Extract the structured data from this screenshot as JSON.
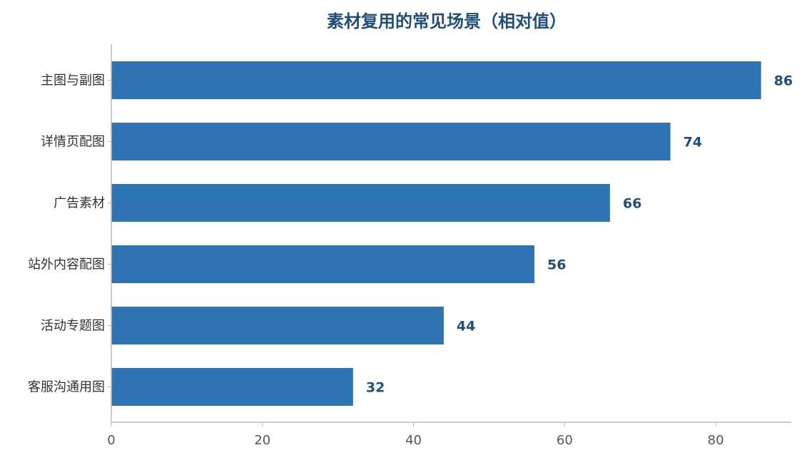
{
  "chart_data": {
    "type": "bar",
    "orientation": "horizontal",
    "title": "素材复用的常见场景（相对值）",
    "xlabel": "",
    "ylabel": "",
    "categories": [
      "主图与副图",
      "详情页配图",
      "广告素材",
      "站外内容配图",
      "活动专题图",
      "客服沟通用图"
    ],
    "values": [
      86,
      74,
      66,
      56,
      44,
      32
    ],
    "xlim": [
      0,
      90
    ],
    "xticks": [
      0,
      20,
      40,
      60,
      80
    ],
    "grid": false,
    "legend": "none",
    "data_labels": true
  },
  "colors": {
    "bar": "#2E74B5",
    "title": "#1F4E79",
    "value_label": "#1F4E79",
    "axis": "#BBBBBB"
  }
}
